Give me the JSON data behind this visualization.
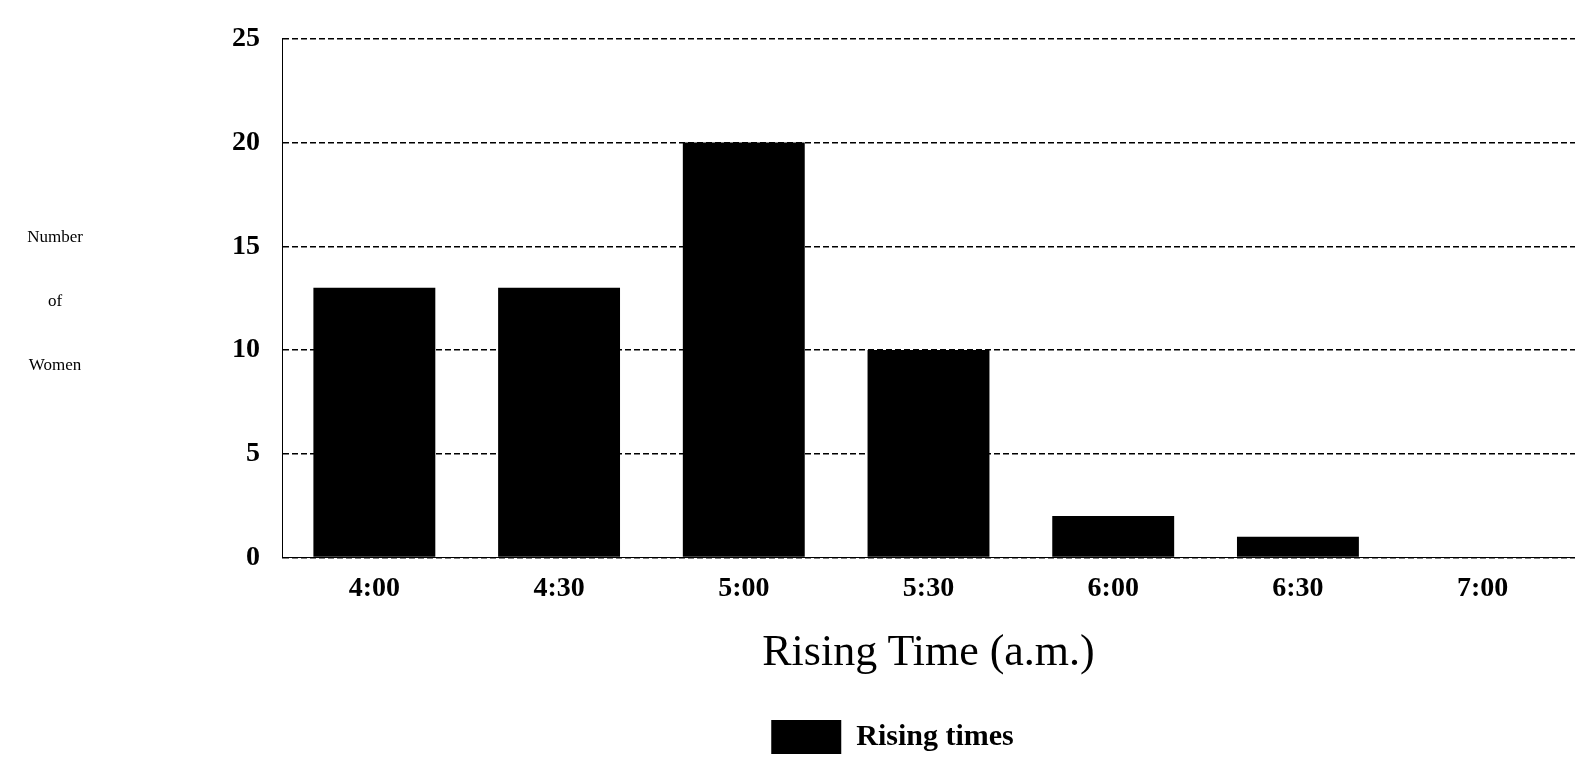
{
  "chart_data": {
    "type": "bar",
    "xlabel": "Rising Time (a.m.)",
    "ylabel": "Number of Women",
    "categories": [
      "4:00",
      "4:30",
      "5:00",
      "5:30",
      "6:00",
      "6:30",
      "7:00"
    ],
    "series": [
      {
        "name": "Rising times",
        "color": "#000000",
        "values": [
          13,
          13,
          20,
          10,
          2,
          1,
          0
        ]
      }
    ],
    "ylim": [
      0,
      25
    ],
    "yticks": [
      0,
      5,
      10,
      15,
      20,
      25
    ],
    "grid": "y",
    "legend": "bottom"
  }
}
